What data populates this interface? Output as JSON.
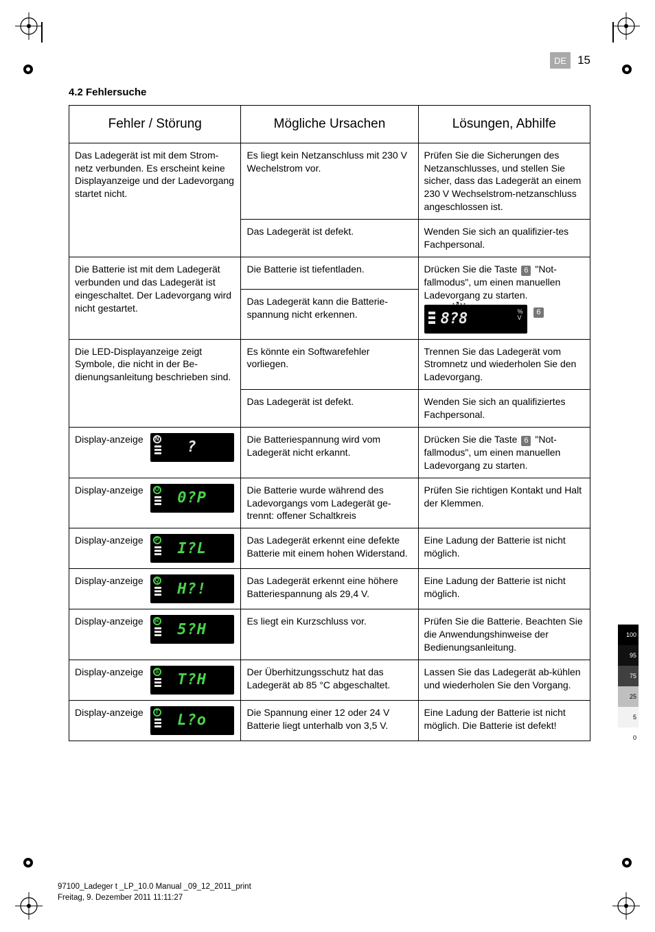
{
  "header": {
    "lang": "DE",
    "page": "15"
  },
  "section_title": "4.2 Fehlersuche",
  "table": {
    "headers": [
      "Fehler / Störung",
      "Mögliche Ursachen",
      "Lösungen, Abhilfe"
    ],
    "r1": {
      "fault": "Das Ladegerät ist mit dem Strom-netz verbunden. Es erscheint keine Displayanzeige und der Ladevorgang startet nicht.",
      "cause": "Es liegt kein Netzanschluss mit 230 V Wechelstrom vor.",
      "fix": "Prüfen Sie die Sicherungen des Netzanschlusses, und stellen Sie sicher, dass das Ladegerät an einem 230 V Wechselstrom-netzanschluss angeschlossen ist."
    },
    "r1b": {
      "cause": "Das Ladegerät ist defekt.",
      "fix": "Wenden Sie sich an qualifizier-tes Fachpersonal."
    },
    "r2": {
      "fault": "Die Batterie ist mit dem Ladegerät verbunden und das Ladegerät ist eingeschaltet. Der Ladevorgang wird nicht gestartet.",
      "cause": "Die Batterie ist tiefentladen.",
      "fix_pre": "Drücken Sie die Taste ",
      "fix_key": "6",
      "fix_post": " \"Not-fallmodus\", um einen manuellen Ladevorgang zu starten."
    },
    "r2b": {
      "cause": "Das Ladegerät kann die Batterie-spannung nicht erkennen."
    },
    "r2_lcd": {
      "seg": "8?8",
      "pct_top": "%",
      "pct_bot": "V",
      "key_out": "6"
    },
    "r3": {
      "fault": "Die LED-Displayanzeige zeigt Symbole, die nicht in der Be-dienungsanleitung beschrieben sind.",
      "cause": "Es könnte ein Softwarefehler vorliegen.",
      "fix": "Trennen Sie das Ladegerät vom Stromnetz und wiederholen Sie den Ladevorgang."
    },
    "r3b": {
      "cause": "Das Ladegerät ist defekt.",
      "fix": "Wenden Sie sich an qualifiziertes Fachpersonal."
    },
    "disp_label": "Display-anzeige",
    "d1": {
      "tag": "N",
      "color": "#e8e8e8",
      "seg": "?",
      "cause": "Die Batteriespannung wird vom Ladegerät nicht erkannt.",
      "fix_pre": "Drücken Sie die Taste ",
      "fix_key": "6",
      "fix_post": " \"Not-fallmodus\", um einen manuellen Ladevorgang zu starten."
    },
    "d2": {
      "tag": "O",
      "color": "#4bd24b",
      "seg": "0?P",
      "cause": "Die Batterie wurde während des Ladevorgangs vom Ladegerät ge-trennt: offener Schaltkreis",
      "fix": "Prüfen Sie richtigen Kontakt und Halt der Klemmen."
    },
    "d3": {
      "tag": "P",
      "color": "#4bd24b",
      "seg": "I?L",
      "cause": "Das Ladegerät erkennt eine defekte Batterie mit einem hohen Widerstand.",
      "fix": "Eine Ladung der Batterie ist nicht möglich."
    },
    "d4": {
      "tag": "Q",
      "color": "#4bd24b",
      "seg": "H?!",
      "cause": "Das Ladegerät erkennt eine höhere Batteriespannung als 29,4 V.",
      "fix": "Eine Ladung der Batterie ist nicht möglich."
    },
    "d5": {
      "tag": "R",
      "color": "#4bd24b",
      "seg": "5?H",
      "cause": "Es liegt ein Kurzschluss vor.",
      "fix": "Prüfen Sie die Batterie. Beachten Sie die Anwendungshinweise der Bedienungsanleitung."
    },
    "d6": {
      "tag": "S",
      "color": "#4bd24b",
      "seg": "T?H",
      "cause": "Der Überhitzungsschutz hat das Ladegerät ab 85 °C abgeschaltet.",
      "fix": "Lassen Sie das Ladegerät ab-kühlen und wiederholen Sie den Vorgang."
    },
    "d7": {
      "tag": "T",
      "color": "#4bd24b",
      "seg": "L?o",
      "cause": "Die Spannung einer 12 oder 24 V Batterie liegt unterhalb von 3,5 V.",
      "fix": "Eine Ladung der Batterie ist nicht möglich. Die Batterie ist defekt!"
    }
  },
  "footer": {
    "line1": "97100_Ladeger  t _LP_10.0 Manual _09_12_2011_print",
    "line2": "Freitag, 9. Dezember 2011 11:11:27"
  },
  "inkbar": [
    {
      "v": "100",
      "bg": "#000000",
      "light": false
    },
    {
      "v": "95",
      "bg": "#111111",
      "light": false
    },
    {
      "v": "75",
      "bg": "#404040",
      "light": false
    },
    {
      "v": "25",
      "bg": "#bfbfbf",
      "light": true
    },
    {
      "v": "5",
      "bg": "#f2f2f2",
      "light": true
    },
    {
      "v": "0",
      "bg": "#ffffff",
      "light": true
    }
  ]
}
